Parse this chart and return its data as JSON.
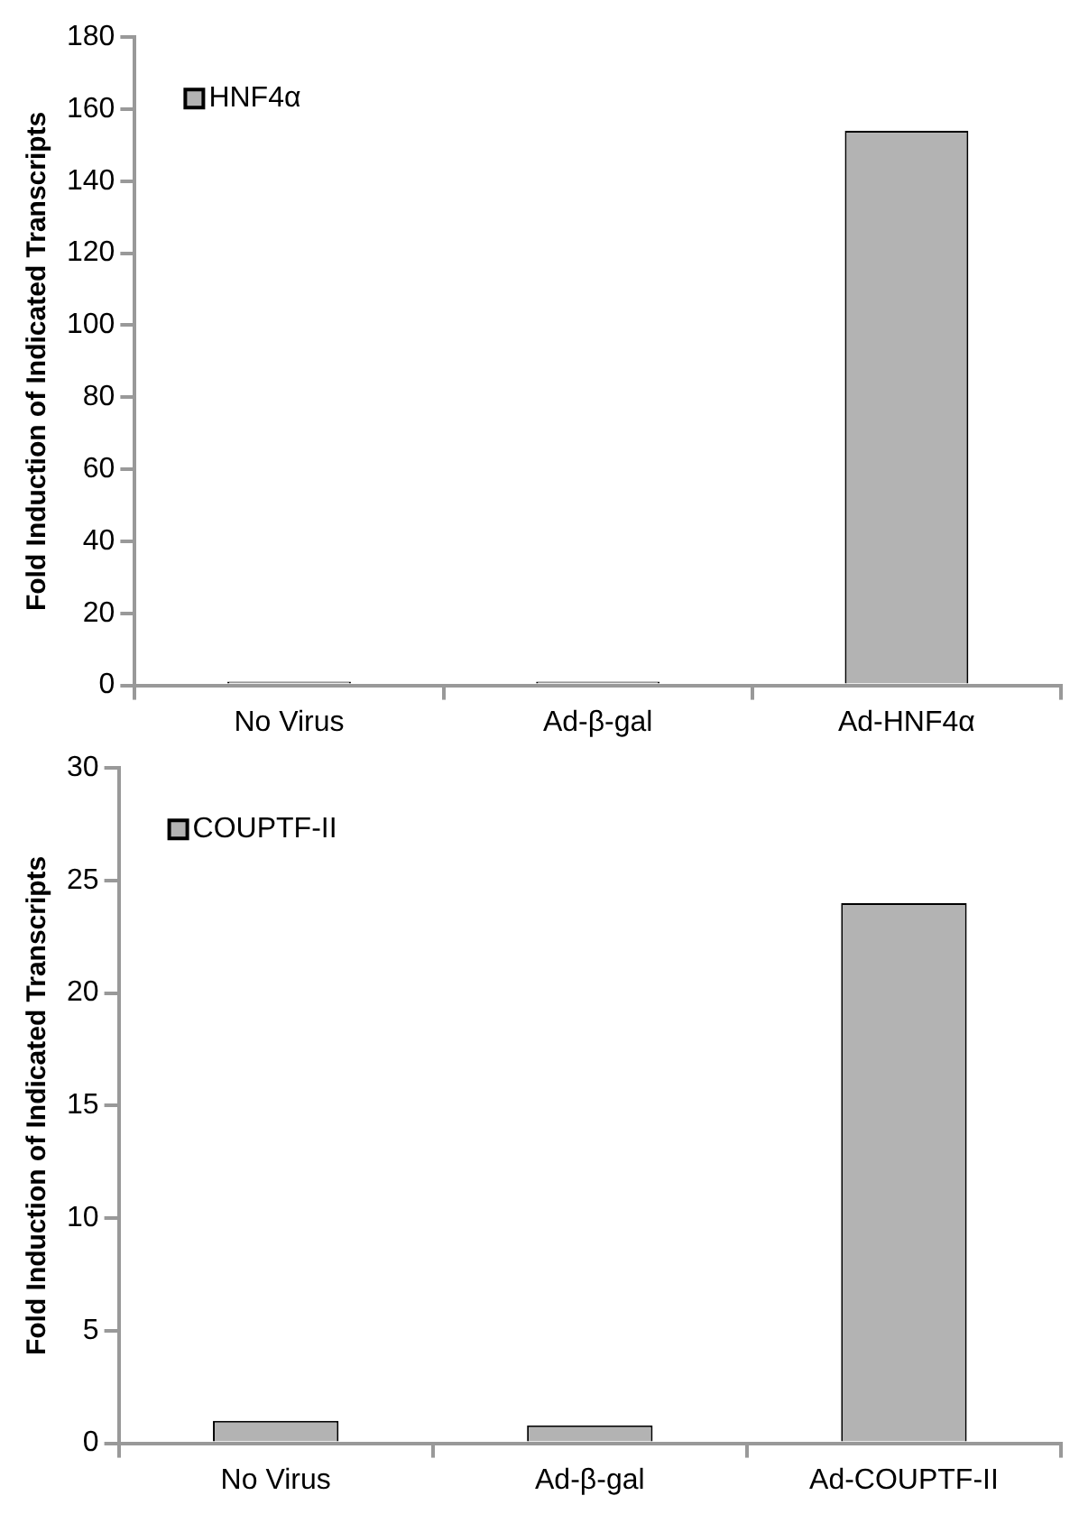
{
  "chart_data": [
    {
      "type": "bar",
      "ylabel": "Fold Induction of Indicated Transcripts",
      "categories": [
        "No Virus",
        "Ad-β-gal",
        "Ad-HNF4α"
      ],
      "series": [
        {
          "name": "HNF4α",
          "color": "#b3b3b3",
          "values": [
            1,
            1,
            154
          ]
        }
      ],
      "ylim": [
        0,
        180
      ],
      "yticks": [
        0,
        20,
        40,
        60,
        80,
        100,
        120,
        140,
        160,
        180
      ],
      "grid": false,
      "legend": "top left"
    },
    {
      "type": "bar",
      "ylabel": "Fold Induction of Indicated Transcripts",
      "categories": [
        "No Virus",
        "Ad-β-gal",
        "Ad-COUPTF-II"
      ],
      "series": [
        {
          "name": "COUPTF-II",
          "color": "#b3b3b3",
          "values": [
            1,
            0.8,
            24
          ]
        }
      ],
      "ylim": [
        0,
        30
      ],
      "yticks": [
        0,
        5,
        10,
        15,
        20,
        25,
        30
      ],
      "grid": false,
      "legend": "top left"
    }
  ]
}
